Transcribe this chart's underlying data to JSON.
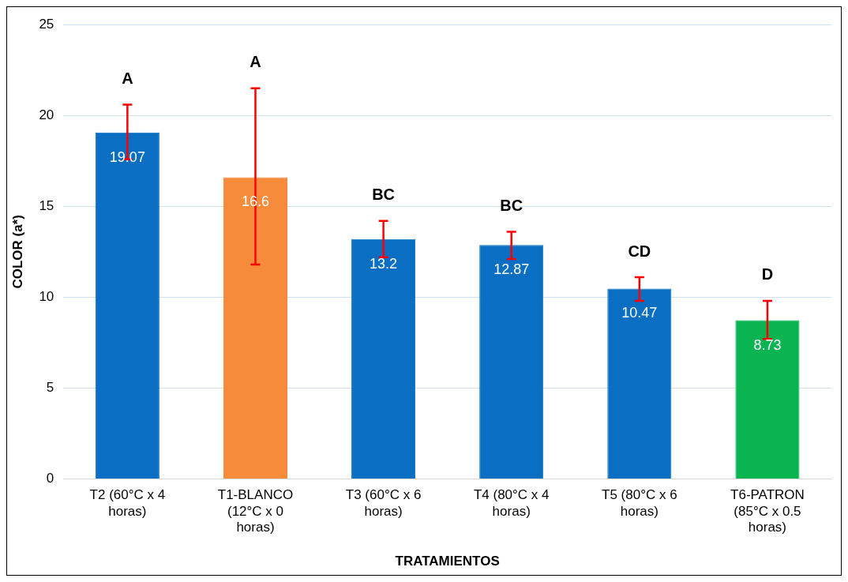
{
  "chart_data": {
    "type": "bar",
    "xlabel": "TRATAMIENTOS",
    "ylabel": "COLOR (a*)",
    "categories": [
      "T2 (60°C x 4 horas)",
      "T1-BLANCO (12°C x 0 horas)",
      "T3 (60°C x 6 horas)",
      "T4 (80°C x 4 horas)",
      "T5 (80°C x 6 horas)",
      "T6-PATRON (85°C x 0.5 horas)"
    ],
    "values": [
      19.07,
      16.6,
      13.2,
      12.87,
      10.47,
      8.73
    ],
    "colors": [
      "#0a6fc2",
      "#f68b3c",
      "#0a6fc2",
      "#0a6fc2",
      "#0a6fc2",
      "#0ab450"
    ],
    "errors": [
      [
        17.6,
        20.6
      ],
      [
        11.8,
        21.5
      ],
      [
        12.2,
        14.2
      ],
      [
        12.1,
        13.6
      ],
      [
        9.8,
        11.1
      ],
      [
        7.7,
        9.8
      ]
    ],
    "data_labels": true,
    "annotations": [
      {
        "text": "A",
        "x": "T2 (60°C x 4 horas)",
        "y": 20.6
      },
      {
        "text": "A",
        "x": "T1-BLANCO (12°C x 0 horas)",
        "y": 21.5
      },
      {
        "text": "BC",
        "x": "T3 (60°C x 6 horas)",
        "y": 14.2
      },
      {
        "text": "BC",
        "x": "T4 (80°C x 4 horas)",
        "y": 13.6
      },
      {
        "text": "CD",
        "x": "T5 (80°C x 6 horas)",
        "y": 11.1
      },
      {
        "text": "D",
        "x": "T6-PATRON (85°C x 0.5 horas)",
        "y": 9.8
      }
    ],
    "ylim": [
      0,
      25
    ],
    "yticks": [
      0,
      5,
      10,
      15,
      20,
      25
    ],
    "grid": "y",
    "legend": false
  }
}
